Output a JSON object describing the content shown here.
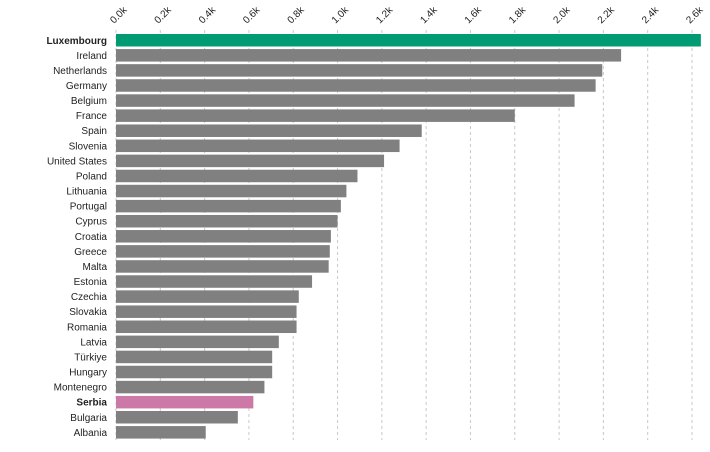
{
  "chart_data": {
    "type": "bar",
    "orientation": "horizontal",
    "title": "",
    "xlabel": "",
    "ylabel": "",
    "xlim": [
      0,
      2600
    ],
    "x_ticks": [
      {
        "value": 0,
        "label": "0.0k"
      },
      {
        "value": 200,
        "label": "0.2k"
      },
      {
        "value": 400,
        "label": "0.4k"
      },
      {
        "value": 600,
        "label": "0.6k"
      },
      {
        "value": 800,
        "label": "0.8k"
      },
      {
        "value": 1000,
        "label": "1.0k"
      },
      {
        "value": 1200,
        "label": "1.2k"
      },
      {
        "value": 1400,
        "label": "1.4k"
      },
      {
        "value": 1600,
        "label": "1.6k"
      },
      {
        "value": 1800,
        "label": "1.8k"
      },
      {
        "value": 2000,
        "label": "2.0k"
      },
      {
        "value": 2200,
        "label": "2.2k"
      },
      {
        "value": 2400,
        "label": "2.4k"
      },
      {
        "value": 2600,
        "label": "2.6k"
      }
    ],
    "grid": "vertical dashed",
    "colors": {
      "default": "#808080",
      "highlight_primary": "#009a73",
      "highlight_secondary": "#cc79a7"
    },
    "categories": [
      {
        "name": "Luxembourg",
        "value": 2640,
        "highlight": "primary"
      },
      {
        "name": "Ireland",
        "value": 2280
      },
      {
        "name": "Netherlands",
        "value": 2195
      },
      {
        "name": "Germany",
        "value": 2165
      },
      {
        "name": "Belgium",
        "value": 2070
      },
      {
        "name": "France",
        "value": 1800
      },
      {
        "name": "Spain",
        "value": 1380
      },
      {
        "name": "Slovenia",
        "value": 1280
      },
      {
        "name": "United States",
        "value": 1210
      },
      {
        "name": "Poland",
        "value": 1090
      },
      {
        "name": "Lithuania",
        "value": 1040
      },
      {
        "name": "Portugal",
        "value": 1015
      },
      {
        "name": "Cyprus",
        "value": 1000
      },
      {
        "name": "Croatia",
        "value": 970
      },
      {
        "name": "Greece",
        "value": 965
      },
      {
        "name": "Malta",
        "value": 960
      },
      {
        "name": "Estonia",
        "value": 885
      },
      {
        "name": "Czechia",
        "value": 825
      },
      {
        "name": "Slovakia",
        "value": 815
      },
      {
        "name": "Romania",
        "value": 815
      },
      {
        "name": "Latvia",
        "value": 735
      },
      {
        "name": "Türkiye",
        "value": 705
      },
      {
        "name": "Hungary",
        "value": 705
      },
      {
        "name": "Montenegro",
        "value": 670
      },
      {
        "name": "Serbia",
        "value": 620,
        "highlight": "secondary"
      },
      {
        "name": "Bulgaria",
        "value": 550
      },
      {
        "name": "Albania",
        "value": 405
      }
    ]
  }
}
